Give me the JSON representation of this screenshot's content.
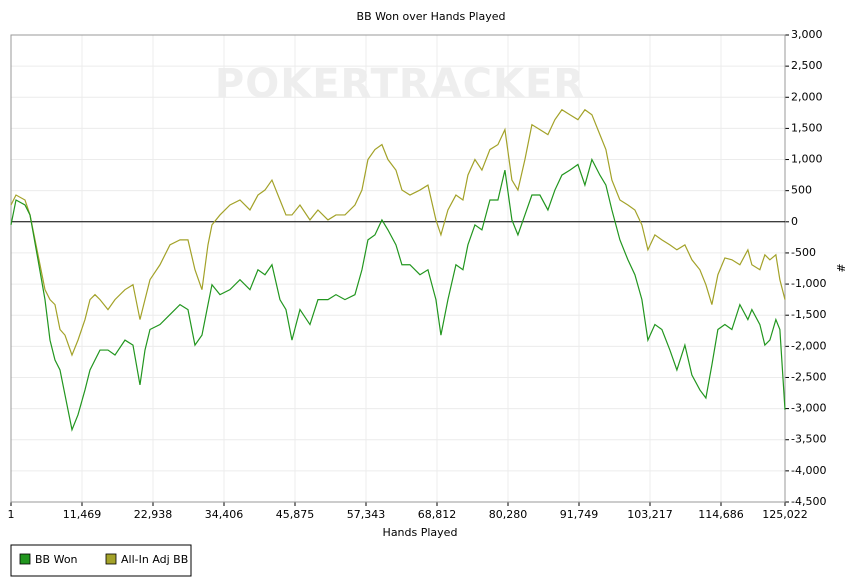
{
  "chart_data": {
    "type": "line",
    "title": "BB Won over Hands Played",
    "watermark": "POKERTRACKER",
    "x_label": "Hands Played",
    "y_label": "#",
    "y_axis_side": "right",
    "grid": true,
    "zero_line": true,
    "legend_position": "bottom-left",
    "xlim": [
      1,
      125022
    ],
    "xticks": [
      1,
      {
        "value": 11469,
        "label": "11,469"
      },
      {
        "value": 22938,
        "label": "22,938"
      },
      {
        "value": 34406,
        "label": "34,406"
      },
      {
        "value": 45875,
        "label": "45,875"
      },
      {
        "value": 57343,
        "label": "57,343"
      },
      {
        "value": 68812,
        "label": "68,812"
      },
      {
        "value": 80280,
        "label": "80,280"
      },
      {
        "value": 91749,
        "label": "91,749"
      },
      {
        "value": 103217,
        "label": "103,217"
      },
      {
        "value": 114686,
        "label": "114,686"
      },
      {
        "value": 125022,
        "label": "125,022"
      }
    ],
    "ylim": [
      -4500,
      3000
    ],
    "yticks": [
      {
        "value": -4500,
        "label": "-4,500"
      },
      {
        "value": -4000,
        "label": "-4,000"
      },
      {
        "value": -3500,
        "label": "-3,500"
      },
      {
        "value": -3000,
        "label": "-3,000"
      },
      {
        "value": -2500,
        "label": "-2,500"
      },
      {
        "value": -2000,
        "label": "-2,000"
      },
      {
        "value": -1500,
        "label": "-1,500"
      },
      {
        "value": -1000,
        "label": "-1,000"
      },
      -500,
      0,
      500,
      {
        "value": 1000,
        "label": "1,000"
      },
      {
        "value": 1500,
        "label": "1,500"
      },
      {
        "value": 2000,
        "label": "2,000"
      },
      {
        "value": 2500,
        "label": "2,500"
      },
      {
        "value": 3000,
        "label": "3,000"
      }
    ],
    "x": [
      1,
      809,
      2262,
      3070,
      4362,
      5492,
      6300,
      7107,
      7915,
      8722,
      9852,
      10821,
      11952,
      12760,
      13567,
      14375,
      15666,
      16797,
      18412,
      19704,
      20835,
      21642,
      22450,
      24065,
      25680,
      27295,
      28587,
      29717,
      30848,
      31817,
      32463,
      33755,
      35370,
      36985,
      38600,
      39892,
      41023,
      42153,
      43445,
      44414,
      45383,
      46675,
      48290,
      49582,
      51197,
      52489,
      53942,
      55557,
      56688,
      57657,
      58788,
      59918,
      60887,
      62179,
      63148,
      64440,
      66055,
      67347,
      68638,
      69446,
      70576,
      71868,
      72999,
      73806,
      74937,
      76067,
      77359,
      78651,
      79782,
      80912,
      81881,
      83012,
      84142,
      85434,
      86726,
      87857,
      88987,
      90279,
      91571,
      92702,
      93832,
      95124,
      96093,
      97062,
      98354,
      99646,
      100777,
      101907,
      102876,
      104007,
      105137,
      106429,
      107560,
      108851,
      109982,
      111274,
      112243,
      113212,
      114180,
      115311,
      116442,
      117734,
      119025,
      119671,
      120963,
      121771,
      122578,
      123547,
      124193,
      125022
    ],
    "series": [
      {
        "name": "All-In Adj BB",
        "color": "#a3a229",
        "values": [
          270,
          430,
          350,
          110,
          -530,
          -1090,
          -1250,
          -1330,
          -1730,
          -1820,
          -2140,
          -1900,
          -1570,
          -1250,
          -1170,
          -1250,
          -1410,
          -1250,
          -1090,
          -1010,
          -1570,
          -1250,
          -930,
          -690,
          -370,
          -290,
          -290,
          -770,
          -1090,
          -370,
          -50,
          110,
          270,
          350,
          190,
          430,
          510,
          670,
          350,
          110,
          110,
          270,
          30,
          190,
          30,
          110,
          110,
          270,
          510,
          1000,
          1160,
          1240,
          1000,
          830,
          510,
          430,
          510,
          590,
          30,
          -210,
          190,
          430,
          350,
          750,
          1000,
          830,
          1160,
          1240,
          1480,
          670,
          510,
          1000,
          1560,
          1480,
          1400,
          1640,
          1800,
          1720,
          1640,
          1800,
          1720,
          1400,
          1160,
          670,
          350,
          270,
          190,
          -50,
          -450,
          -210,
          -290,
          -370,
          -450,
          -370,
          -610,
          -770,
          -1010,
          -1330,
          -850,
          -580,
          -610,
          -690,
          -450,
          -690,
          -770,
          -530,
          -610,
          -530,
          -930,
          -1250
        ]
      },
      {
        "name": "BB Won",
        "color": "#22961f",
        "values": [
          -50,
          350,
          270,
          110,
          -610,
          -1250,
          -1900,
          -2220,
          -2380,
          -2780,
          -3340,
          -3100,
          -2700,
          -2380,
          -2220,
          -2060,
          -2060,
          -2140,
          -1900,
          -1980,
          -2620,
          -2060,
          -1730,
          -1650,
          -1490,
          -1330,
          -1410,
          -1980,
          -1820,
          -1330,
          -1010,
          -1170,
          -1090,
          -930,
          -1090,
          -770,
          -850,
          -690,
          -1250,
          -1410,
          -1900,
          -1410,
          -1650,
          -1250,
          -1250,
          -1170,
          -1250,
          -1170,
          -770,
          -290,
          -210,
          30,
          -130,
          -370,
          -690,
          -690,
          -850,
          -770,
          -1250,
          -1820,
          -1250,
          -690,
          -770,
          -370,
          -50,
          -130,
          350,
          350,
          830,
          30,
          -210,
          110,
          430,
          430,
          190,
          510,
          750,
          830,
          920,
          590,
          1000,
          750,
          590,
          190,
          -290,
          -610,
          -850,
          -1250,
          -1900,
          -1650,
          -1730,
          -2060,
          -2380,
          -1980,
          -2460,
          -2700,
          -2830,
          -2300,
          -1730,
          -1650,
          -1730,
          -1330,
          -1570,
          -1410,
          -1650,
          -1980,
          -1900,
          -1570,
          -1730,
          -3020
        ]
      }
    ]
  }
}
